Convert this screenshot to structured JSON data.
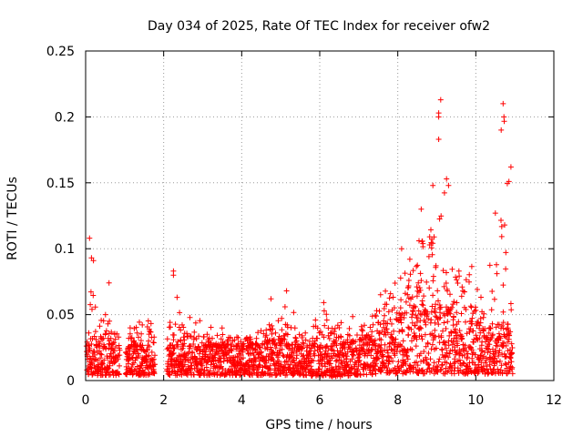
{
  "chart_data": {
    "type": "scatter",
    "title": "Day 034 of 2025, Rate Of TEC Index for receiver ofw2",
    "xlabel": "GPS time / hours",
    "ylabel": "ROTI / TECUs",
    "xlim": [
      0,
      12
    ],
    "ylim": [
      0,
      0.25
    ],
    "x_ticks": [
      "0",
      "2",
      "4",
      "6",
      "8",
      "10",
      "12"
    ],
    "y_ticks": [
      "0",
      "0.05",
      "0.1",
      "0.15",
      "0.2",
      "0.25"
    ],
    "grid": true,
    "marker": "+",
    "series_color": "#ff0000",
    "series": [
      {
        "name": "ROTI",
        "envelope": [
          {
            "x": 0.0,
            "base": 0.004,
            "typical": 0.025,
            "peak": 0.045
          },
          {
            "x": 0.1,
            "base": 0.004,
            "typical": 0.03,
            "peak": 0.108
          },
          {
            "x": 0.2,
            "base": 0.004,
            "typical": 0.03,
            "peak": 0.095
          },
          {
            "x": 0.4,
            "base": 0.004,
            "typical": 0.028,
            "peak": 0.06
          },
          {
            "x": 0.6,
            "base": 0.004,
            "typical": 0.028,
            "peak": 0.074
          },
          {
            "x": 0.8,
            "base": 0.004,
            "typical": 0.025,
            "peak": 0.045
          },
          {
            "x": 1.0,
            "base": 0.004,
            "typical": 0.02,
            "peak": 0.03
          },
          {
            "x": 1.2,
            "base": 0.004,
            "typical": 0.025,
            "peak": 0.055
          },
          {
            "x": 1.5,
            "base": 0.004,
            "typical": 0.025,
            "peak": 0.057
          },
          {
            "x": 1.7,
            "base": 0.004,
            "typical": 0.025,
            "peak": 0.05
          },
          {
            "x": 2.0,
            "base": 0.004,
            "typical": 0.02,
            "peak": 0.04
          },
          {
            "x": 2.2,
            "base": 0.004,
            "typical": 0.025,
            "peak": 0.083
          },
          {
            "x": 2.5,
            "base": 0.004,
            "typical": 0.025,
            "peak": 0.05
          },
          {
            "x": 3.0,
            "base": 0.004,
            "typical": 0.025,
            "peak": 0.045
          },
          {
            "x": 3.5,
            "base": 0.004,
            "typical": 0.025,
            "peak": 0.045
          },
          {
            "x": 4.0,
            "base": 0.004,
            "typical": 0.025,
            "peak": 0.04
          },
          {
            "x": 4.5,
            "base": 0.004,
            "typical": 0.025,
            "peak": 0.04
          },
          {
            "x": 4.8,
            "base": 0.004,
            "typical": 0.03,
            "peak": 0.062
          },
          {
            "x": 5.2,
            "base": 0.004,
            "typical": 0.025,
            "peak": 0.068
          },
          {
            "x": 5.6,
            "base": 0.004,
            "typical": 0.025,
            "peak": 0.04
          },
          {
            "x": 6.0,
            "base": 0.003,
            "typical": 0.025,
            "peak": 0.063
          },
          {
            "x": 6.5,
            "base": 0.003,
            "typical": 0.025,
            "peak": 0.045
          },
          {
            "x": 7.0,
            "base": 0.004,
            "typical": 0.028,
            "peak": 0.05
          },
          {
            "x": 7.5,
            "base": 0.005,
            "typical": 0.035,
            "peak": 0.07
          },
          {
            "x": 8.0,
            "base": 0.005,
            "typical": 0.045,
            "peak": 0.1
          },
          {
            "x": 8.5,
            "base": 0.005,
            "typical": 0.05,
            "peak": 0.13
          },
          {
            "x": 9.0,
            "base": 0.005,
            "typical": 0.055,
            "peak": 0.213
          },
          {
            "x": 9.2,
            "base": 0.005,
            "typical": 0.05,
            "peak": 0.153
          },
          {
            "x": 9.5,
            "base": 0.005,
            "typical": 0.05,
            "peak": 0.12
          },
          {
            "x": 9.8,
            "base": 0.005,
            "typical": 0.045,
            "peak": 0.105
          },
          {
            "x": 10.0,
            "base": 0.005,
            "typical": 0.04,
            "peak": 0.07
          },
          {
            "x": 10.3,
            "base": 0.005,
            "typical": 0.035,
            "peak": 0.11
          },
          {
            "x": 10.5,
            "base": 0.005,
            "typical": 0.04,
            "peak": 0.13
          },
          {
            "x": 10.7,
            "base": 0.005,
            "typical": 0.04,
            "peak": 0.21
          },
          {
            "x": 10.9,
            "base": 0.005,
            "typical": 0.035,
            "peak": 0.162
          }
        ],
        "gaps_hours": [
          [
            0.88,
            1.02
          ],
          [
            1.78,
            2.08
          ]
        ],
        "data_end_hours": 10.95,
        "peak_points": [
          {
            "x": 0.1,
            "y": 0.108
          },
          {
            "x": 0.15,
            "y": 0.093
          },
          {
            "x": 0.2,
            "y": 0.091
          },
          {
            "x": 0.6,
            "y": 0.074
          },
          {
            "x": 2.25,
            "y": 0.083
          },
          {
            "x": 2.25,
            "y": 0.08
          },
          {
            "x": 5.15,
            "y": 0.068
          },
          {
            "x": 4.75,
            "y": 0.062
          },
          {
            "x": 8.1,
            "y": 0.1
          },
          {
            "x": 8.6,
            "y": 0.13
          },
          {
            "x": 8.9,
            "y": 0.148
          },
          {
            "x": 9.05,
            "y": 0.203
          },
          {
            "x": 9.05,
            "y": 0.2
          },
          {
            "x": 9.1,
            "y": 0.213
          },
          {
            "x": 9.05,
            "y": 0.183
          },
          {
            "x": 9.25,
            "y": 0.153
          },
          {
            "x": 9.3,
            "y": 0.148
          },
          {
            "x": 10.65,
            "y": 0.19
          },
          {
            "x": 10.7,
            "y": 0.21
          },
          {
            "x": 10.72,
            "y": 0.2
          },
          {
            "x": 10.9,
            "y": 0.162
          },
          {
            "x": 10.85,
            "y": 0.151
          },
          {
            "x": 10.5,
            "y": 0.127
          }
        ]
      }
    ]
  }
}
